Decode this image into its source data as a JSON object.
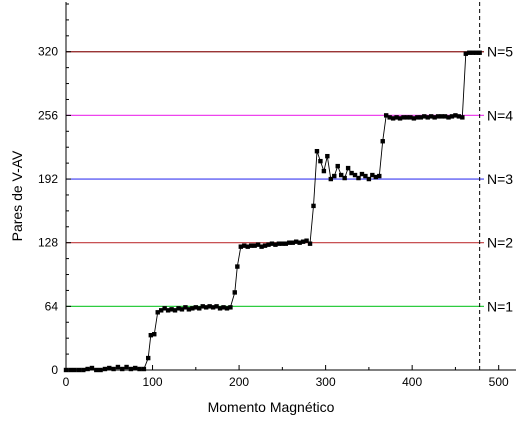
{
  "chart_data": {
    "type": "scatter",
    "title": "",
    "xlabel": "Momento Magnético",
    "ylabel": "Pares de V-AV",
    "xlim": [
      0,
      520
    ],
    "ylim": [
      0,
      370
    ],
    "x_ticks": [
      0,
      100,
      200,
      300,
      400,
      500
    ],
    "y_ticks": [
      0,
      64,
      128,
      192,
      256,
      320
    ],
    "grid": false,
    "legend": "none",
    "reference_lines": [
      {
        "label": "N=1",
        "y": 64,
        "color": "#2ecc40"
      },
      {
        "label": "N=2",
        "y": 128,
        "color": "#c0393b"
      },
      {
        "label": "N=3",
        "y": 192,
        "color": "#3a3af0"
      },
      {
        "label": "N=4",
        "y": 256,
        "color": "#ee44ee"
      },
      {
        "label": "N=5",
        "y": 320,
        "color": "#8b1a1a"
      }
    ],
    "dashed_vertical": {
      "x": 478,
      "color": "#000000"
    },
    "series": [
      {
        "marker_color": "#000000",
        "x": [
          0,
          5,
          10,
          15,
          20,
          25,
          30,
          35,
          40,
          45,
          50,
          55,
          60,
          65,
          70,
          75,
          80,
          85,
          90,
          95,
          98,
          102,
          106,
          110,
          114,
          118,
          122,
          126,
          130,
          134,
          138,
          142,
          146,
          150,
          154,
          158,
          162,
          166,
          170,
          174,
          178,
          182,
          186,
          190,
          195,
          198,
          202,
          206,
          210,
          214,
          218,
          222,
          226,
          230,
          234,
          238,
          242,
          246,
          250,
          254,
          258,
          262,
          266,
          270,
          274,
          278,
          282,
          286,
          290,
          294,
          298,
          302,
          306,
          310,
          314,
          318,
          322,
          326,
          330,
          334,
          338,
          342,
          346,
          350,
          354,
          358,
          362,
          366,
          370,
          374,
          378,
          382,
          386,
          390,
          394,
          398,
          402,
          406,
          410,
          414,
          418,
          422,
          426,
          430,
          434,
          438,
          442,
          446,
          450,
          454,
          458,
          462,
          466,
          470,
          474,
          478
        ],
        "y": [
          0,
          0,
          0,
          0,
          0,
          1,
          2,
          0,
          0,
          1,
          2,
          1,
          3,
          1,
          3,
          1,
          2,
          1,
          1,
          12,
          35,
          36,
          58,
          60,
          62,
          60,
          61,
          60,
          62,
          61,
          63,
          61,
          62,
          63,
          62,
          64,
          63,
          64,
          63,
          64,
          62,
          63,
          62,
          63,
          78,
          104,
          124,
          125,
          124,
          125,
          125,
          126,
          124,
          125,
          126,
          127,
          126,
          127,
          127,
          127,
          128,
          128,
          129,
          128,
          129,
          130,
          127,
          165,
          220,
          210,
          200,
          215,
          192,
          195,
          205,
          196,
          193,
          203,
          198,
          196,
          193,
          197,
          195,
          192,
          196,
          194,
          195,
          230,
          256,
          254,
          253,
          254,
          253,
          254,
          254,
          254,
          253,
          254,
          254,
          255,
          254,
          255,
          254,
          255,
          255,
          255,
          254,
          255,
          256,
          255,
          254,
          318,
          319,
          319,
          319,
          319
        ]
      }
    ]
  }
}
